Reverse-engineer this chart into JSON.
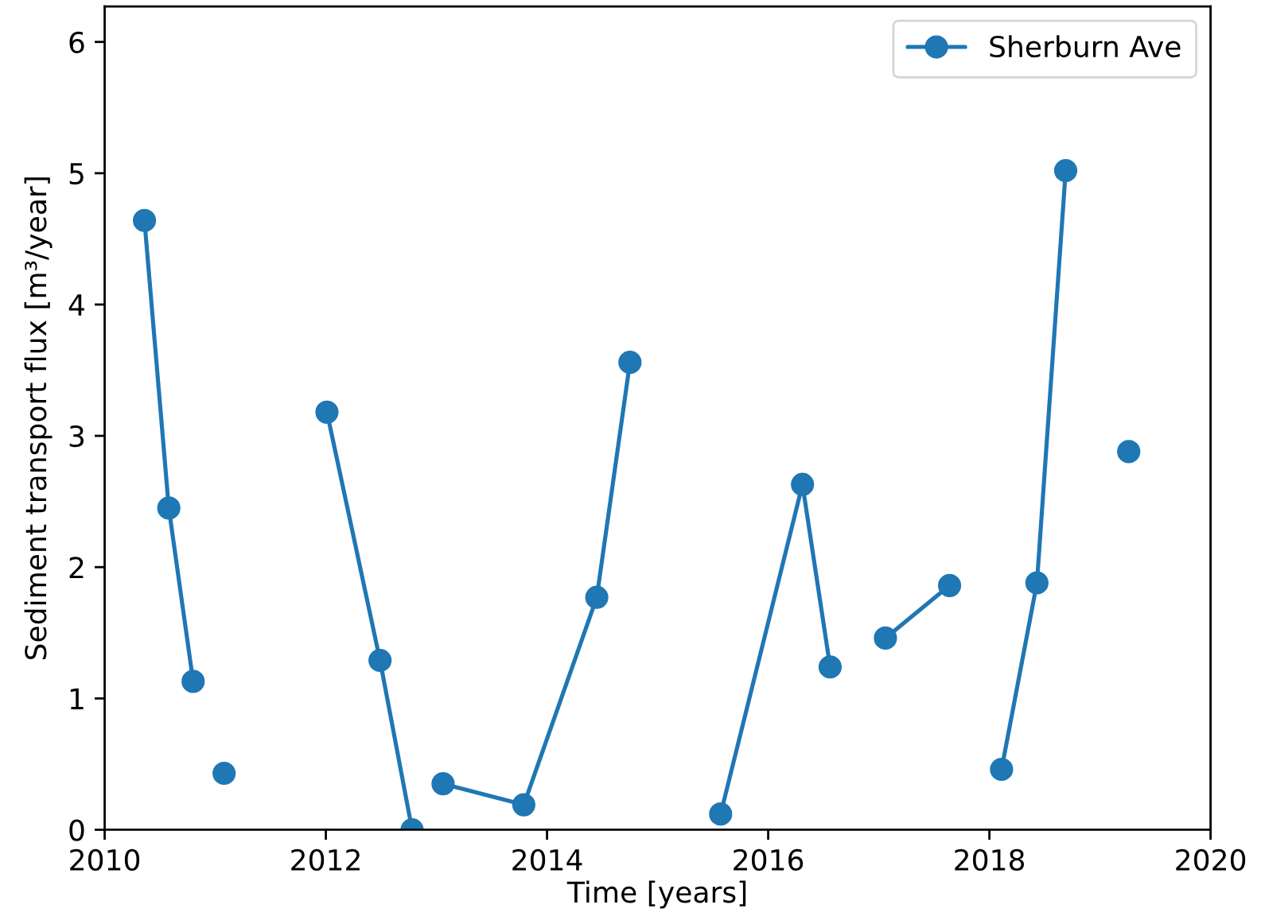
{
  "chart_data": {
    "type": "line",
    "xlabel": "Time [years]",
    "ylabel": "Sediment transport flux [m³/year]",
    "x": [
      2010.36,
      2010.58,
      2010.8,
      null,
      2011.08,
      null,
      2012.01,
      2012.49,
      2012.78,
      null,
      2013.06,
      2013.79,
      2014.45,
      2014.75,
      null,
      2015.57,
      2016.31,
      2016.56,
      null,
      2017.06,
      2017.64,
      null,
      2018.11,
      2018.43,
      2018.69,
      null,
      2019.26
    ],
    "series": [
      {
        "name": "Sherburn Ave",
        "color": "#1f77b4",
        "values": [
          4.64,
          2.45,
          1.13,
          null,
          0.43,
          null,
          3.18,
          1.29,
          0.0,
          null,
          0.35,
          0.19,
          1.77,
          3.56,
          null,
          0.12,
          2.63,
          1.24,
          null,
          1.46,
          1.86,
          null,
          0.46,
          1.88,
          5.02,
          null,
          2.88
        ]
      }
    ],
    "xlim": [
      2010,
      2020
    ],
    "xticks": [
      2010,
      2012,
      2014,
      2016,
      2018,
      2020
    ],
    "ylim": [
      0,
      6.27
    ],
    "yticks": [
      0,
      1,
      2,
      3,
      4,
      5,
      6
    ],
    "grid": false,
    "legend": "top right",
    "marker": "circle",
    "line_style": "solid"
  }
}
